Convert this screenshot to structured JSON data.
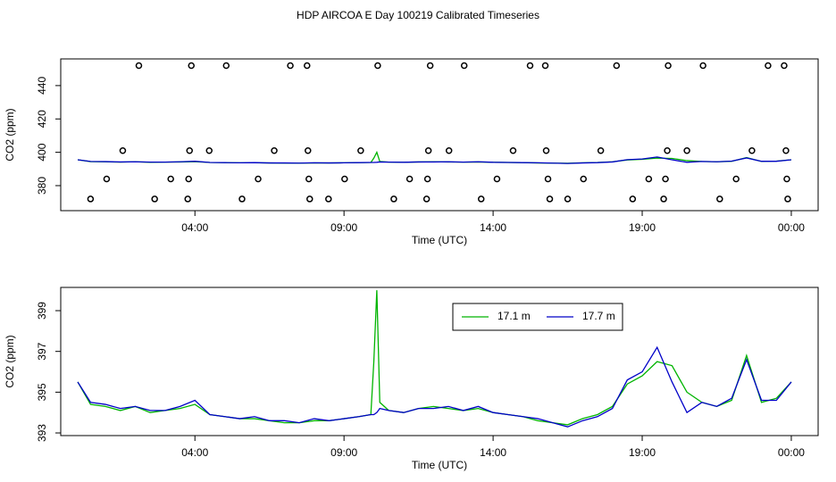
{
  "chart_data": [
    {
      "type": "scatter",
      "title": "HDP AIRCOA E  Day 100219  Calibrated Timeseries",
      "x_label": "Time (UTC)",
      "y_label": "CO2 (ppm)",
      "xlim": [
        -0.5,
        24.9
      ],
      "xticks": [
        {
          "value": 4,
          "label": "04:00"
        },
        {
          "value": 9,
          "label": "09:00"
        },
        {
          "value": 14,
          "label": "14:00"
        },
        {
          "value": 19,
          "label": "19:00"
        },
        {
          "value": 24,
          "label": "00:00"
        }
      ],
      "ylim": [
        365,
        456
      ],
      "yticks": [
        380,
        400,
        420,
        440
      ],
      "points": {
        "x": [
          2.12,
          3.88,
          5.05,
          7.2,
          7.76,
          10.13,
          11.89,
          13.03,
          15.24,
          15.75,
          18.14,
          19.87,
          21.04,
          23.22,
          23.76,
          1.58,
          3.82,
          4.48,
          6.66,
          7.79,
          9.56,
          11.83,
          12.52,
          14.67,
          15.78,
          17.61,
          19.84,
          20.5,
          22.68,
          23.82,
          1.04,
          3.19,
          3.79,
          6.12,
          7.82,
          9.02,
          11.2,
          11.8,
          14.13,
          15.84,
          17.03,
          19.22,
          19.78,
          22.15,
          23.85,
          0.5,
          2.65,
          3.76,
          5.58,
          7.85,
          8.48,
          10.67,
          11.77,
          13.6,
          15.9,
          16.5,
          18.68,
          19.72,
          21.6,
          23.88
        ],
        "y": [
          452,
          452,
          452,
          452,
          452,
          452,
          452,
          452,
          452,
          452,
          452,
          452,
          452,
          452,
          452,
          401,
          401,
          401,
          401,
          401,
          401,
          401,
          401,
          401,
          401,
          401,
          401,
          401,
          401,
          401,
          384,
          384,
          384,
          384,
          384,
          384,
          384,
          384,
          384,
          384,
          384,
          384,
          384,
          384,
          384,
          372,
          372,
          372,
          372,
          372,
          372,
          372,
          372,
          372,
          372,
          372,
          372,
          372,
          372,
          372
        ]
      }
    },
    {
      "type": "line",
      "x_label": "Time (UTC)",
      "y_label": "CO2 (ppm)",
      "xlim": [
        -0.5,
        24.9
      ],
      "xticks": [
        {
          "value": 4,
          "label": "04:00"
        },
        {
          "value": 9,
          "label": "09:00"
        },
        {
          "value": 14,
          "label": "14:00"
        },
        {
          "value": 19,
          "label": "19:00"
        },
        {
          "value": 24,
          "label": "00:00"
        }
      ],
      "ylim": [
        392.87,
        400.14
      ],
      "yticks": [
        393,
        395,
        397,
        399
      ],
      "legend": "top-center",
      "x": [
        0.07,
        0.5,
        1,
        1.5,
        2,
        2.5,
        3,
        3.5,
        4,
        4.5,
        5,
        5.5,
        6,
        6.5,
        7,
        7.5,
        8,
        8.5,
        9,
        9.5,
        9.9,
        10.0,
        10.1,
        10.2,
        10.5,
        11,
        11.5,
        12,
        12.5,
        13,
        13.5,
        14,
        14.5,
        15,
        15.5,
        16,
        16.5,
        17,
        17.5,
        18,
        18.5,
        19,
        19.5,
        20,
        20.5,
        21,
        21.5,
        22,
        22.5,
        23,
        23.5,
        24
      ],
      "series": [
        {
          "name": "17.1 m",
          "color": "#00b400",
          "values": [
            395.5,
            394.4,
            394.3,
            394.1,
            394.3,
            394.0,
            394.1,
            394.2,
            394.4,
            393.9,
            393.8,
            393.7,
            393.7,
            393.6,
            393.5,
            393.5,
            393.6,
            393.6,
            393.7,
            393.8,
            393.9,
            396.5,
            400.0,
            394.5,
            394.1,
            394.0,
            394.2,
            394.3,
            394.2,
            394.1,
            394.2,
            394.0,
            393.9,
            393.8,
            393.6,
            393.5,
            393.4,
            393.7,
            393.9,
            394.3,
            395.4,
            395.8,
            396.5,
            396.3,
            395.0,
            394.5,
            394.3,
            394.6,
            396.8,
            394.5,
            394.7,
            395.5
          ]
        },
        {
          "name": "17.7 m",
          "color": "#0000c8",
          "values": [
            395.5,
            394.5,
            394.4,
            394.2,
            394.3,
            394.1,
            394.1,
            394.3,
            394.6,
            393.9,
            393.8,
            393.7,
            393.8,
            393.6,
            393.6,
            393.5,
            393.7,
            393.6,
            393.7,
            393.8,
            393.9,
            393.9,
            394.0,
            394.2,
            394.1,
            394.0,
            394.2,
            394.2,
            394.3,
            394.1,
            394.3,
            394.0,
            393.9,
            393.8,
            393.7,
            393.5,
            393.3,
            393.6,
            393.8,
            394.2,
            395.6,
            396.0,
            397.2,
            395.5,
            394.0,
            394.5,
            394.3,
            394.7,
            396.6,
            394.6,
            394.6,
            395.5
          ]
        }
      ]
    }
  ]
}
